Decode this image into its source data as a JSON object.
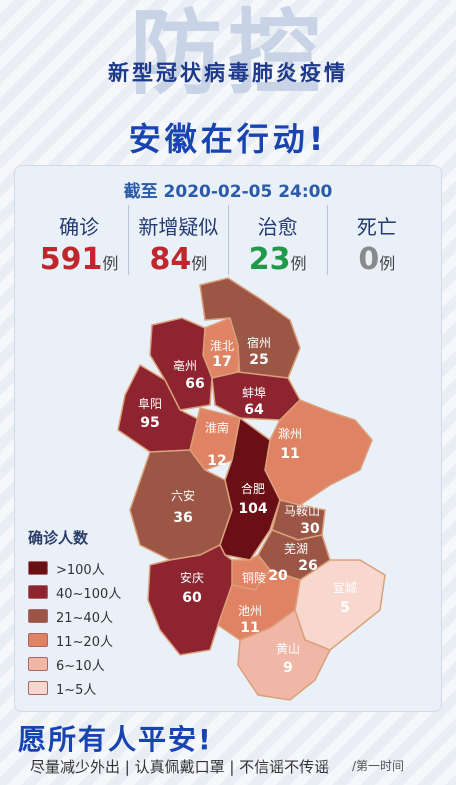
{
  "header": {
    "big_title": "防控",
    "subtitle": "新型冠状病毒肺炎疫情",
    "main_title": "安徽在行动!"
  },
  "date": "截至 2020-02-05 24:00",
  "stats": [
    {
      "label": "确诊",
      "value": "591",
      "unit": "例",
      "color": "#c0272d"
    },
    {
      "label": "新增疑似",
      "value": "84",
      "unit": "例",
      "color": "#c0272d"
    },
    {
      "label": "治愈",
      "value": "23",
      "unit": "例",
      "color": "#1f9a4a"
    },
    {
      "label": "死亡",
      "value": "0",
      "unit": "例",
      "color": "#8a8a8a"
    }
  ],
  "map": {
    "regions": [
      {
        "name": "淮北",
        "count": "17"
      },
      {
        "name": "宿州",
        "count": "25"
      },
      {
        "name": "亳州",
        "count": "66"
      },
      {
        "name": "蚌埠",
        "count": "64"
      },
      {
        "name": "阜阳",
        "count": "95"
      },
      {
        "name": "淮南",
        "count": "12"
      },
      {
        "name": "滁州",
        "count": "11"
      },
      {
        "name": "六安",
        "count": "36"
      },
      {
        "name": "合肥",
        "count": "104"
      },
      {
        "name": "马鞍山",
        "count": "30"
      },
      {
        "name": "芜湖",
        "count": "26"
      },
      {
        "name": "铜陵",
        "count": "20"
      },
      {
        "name": "安庆",
        "count": "60"
      },
      {
        "name": "宣城",
        "count": "5"
      },
      {
        "name": "池州",
        "count": "11"
      },
      {
        "name": "黄山",
        "count": "9"
      }
    ]
  },
  "legend": {
    "title": "确诊人数",
    "items": [
      {
        "label": ">100人",
        "color": "#6b0f16"
      },
      {
        "label": "40~100人",
        "color": "#8e2430"
      },
      {
        "label": "21~40人",
        "color": "#9c5646"
      },
      {
        "label": "11~20人",
        "color": "#e08264"
      },
      {
        "label": "6~10人",
        "color": "#f1b7a6"
      },
      {
        "label": "1~5人",
        "color": "#f8d7ce"
      }
    ]
  },
  "footer": {
    "wish": "愿所有人平安!",
    "slogan": "尽量减少外出 | 认真佩戴口罩 | 不信谣不传谣",
    "watermark": "/第一时间"
  }
}
